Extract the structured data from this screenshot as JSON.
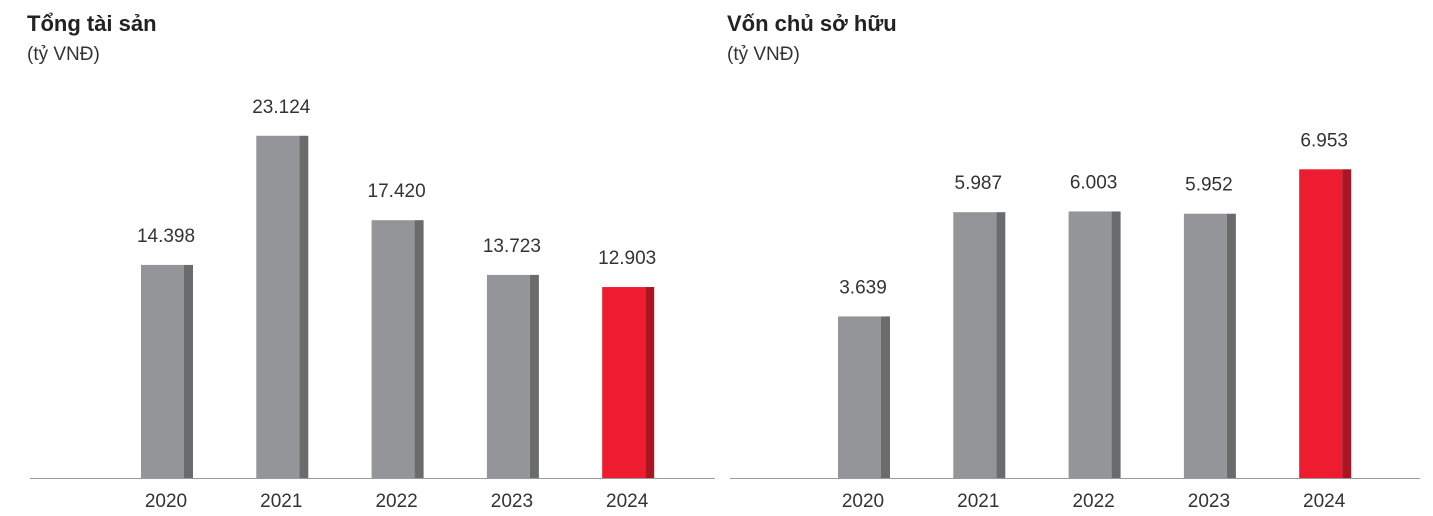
{
  "chart_data": [
    {
      "type": "bar",
      "title": "Tổng tài sản",
      "subtitle": "(tỷ VNĐ)",
      "categories": [
        "2020",
        "2021",
        "2022",
        "2023",
        "2024"
      ],
      "values": [
        14398,
        23124,
        17420,
        13723,
        12903
      ],
      "value_labels": [
        "14.398",
        "23.124",
        "17.420",
        "13.723",
        "12.903"
      ],
      "colors": [
        "#939598",
        "#939598",
        "#939598",
        "#939598",
        "#ed1c2e"
      ],
      "ylim": [
        0,
        30000
      ]
    },
    {
      "type": "bar",
      "title": "Vốn chủ sở hữu",
      "subtitle": "(tỷ VNĐ)",
      "categories": [
        "2020",
        "2021",
        "2022",
        "2023",
        "2024"
      ],
      "values": [
        3639,
        5987,
        6003,
        5952,
        6953
      ],
      "value_labels": [
        "3.639",
        "5.987",
        "6.003",
        "5.952",
        "6.953"
      ],
      "colors": [
        "#939598",
        "#939598",
        "#939598",
        "#939598",
        "#ed1c2e"
      ],
      "ylim": [
        0,
        10000
      ]
    }
  ]
}
